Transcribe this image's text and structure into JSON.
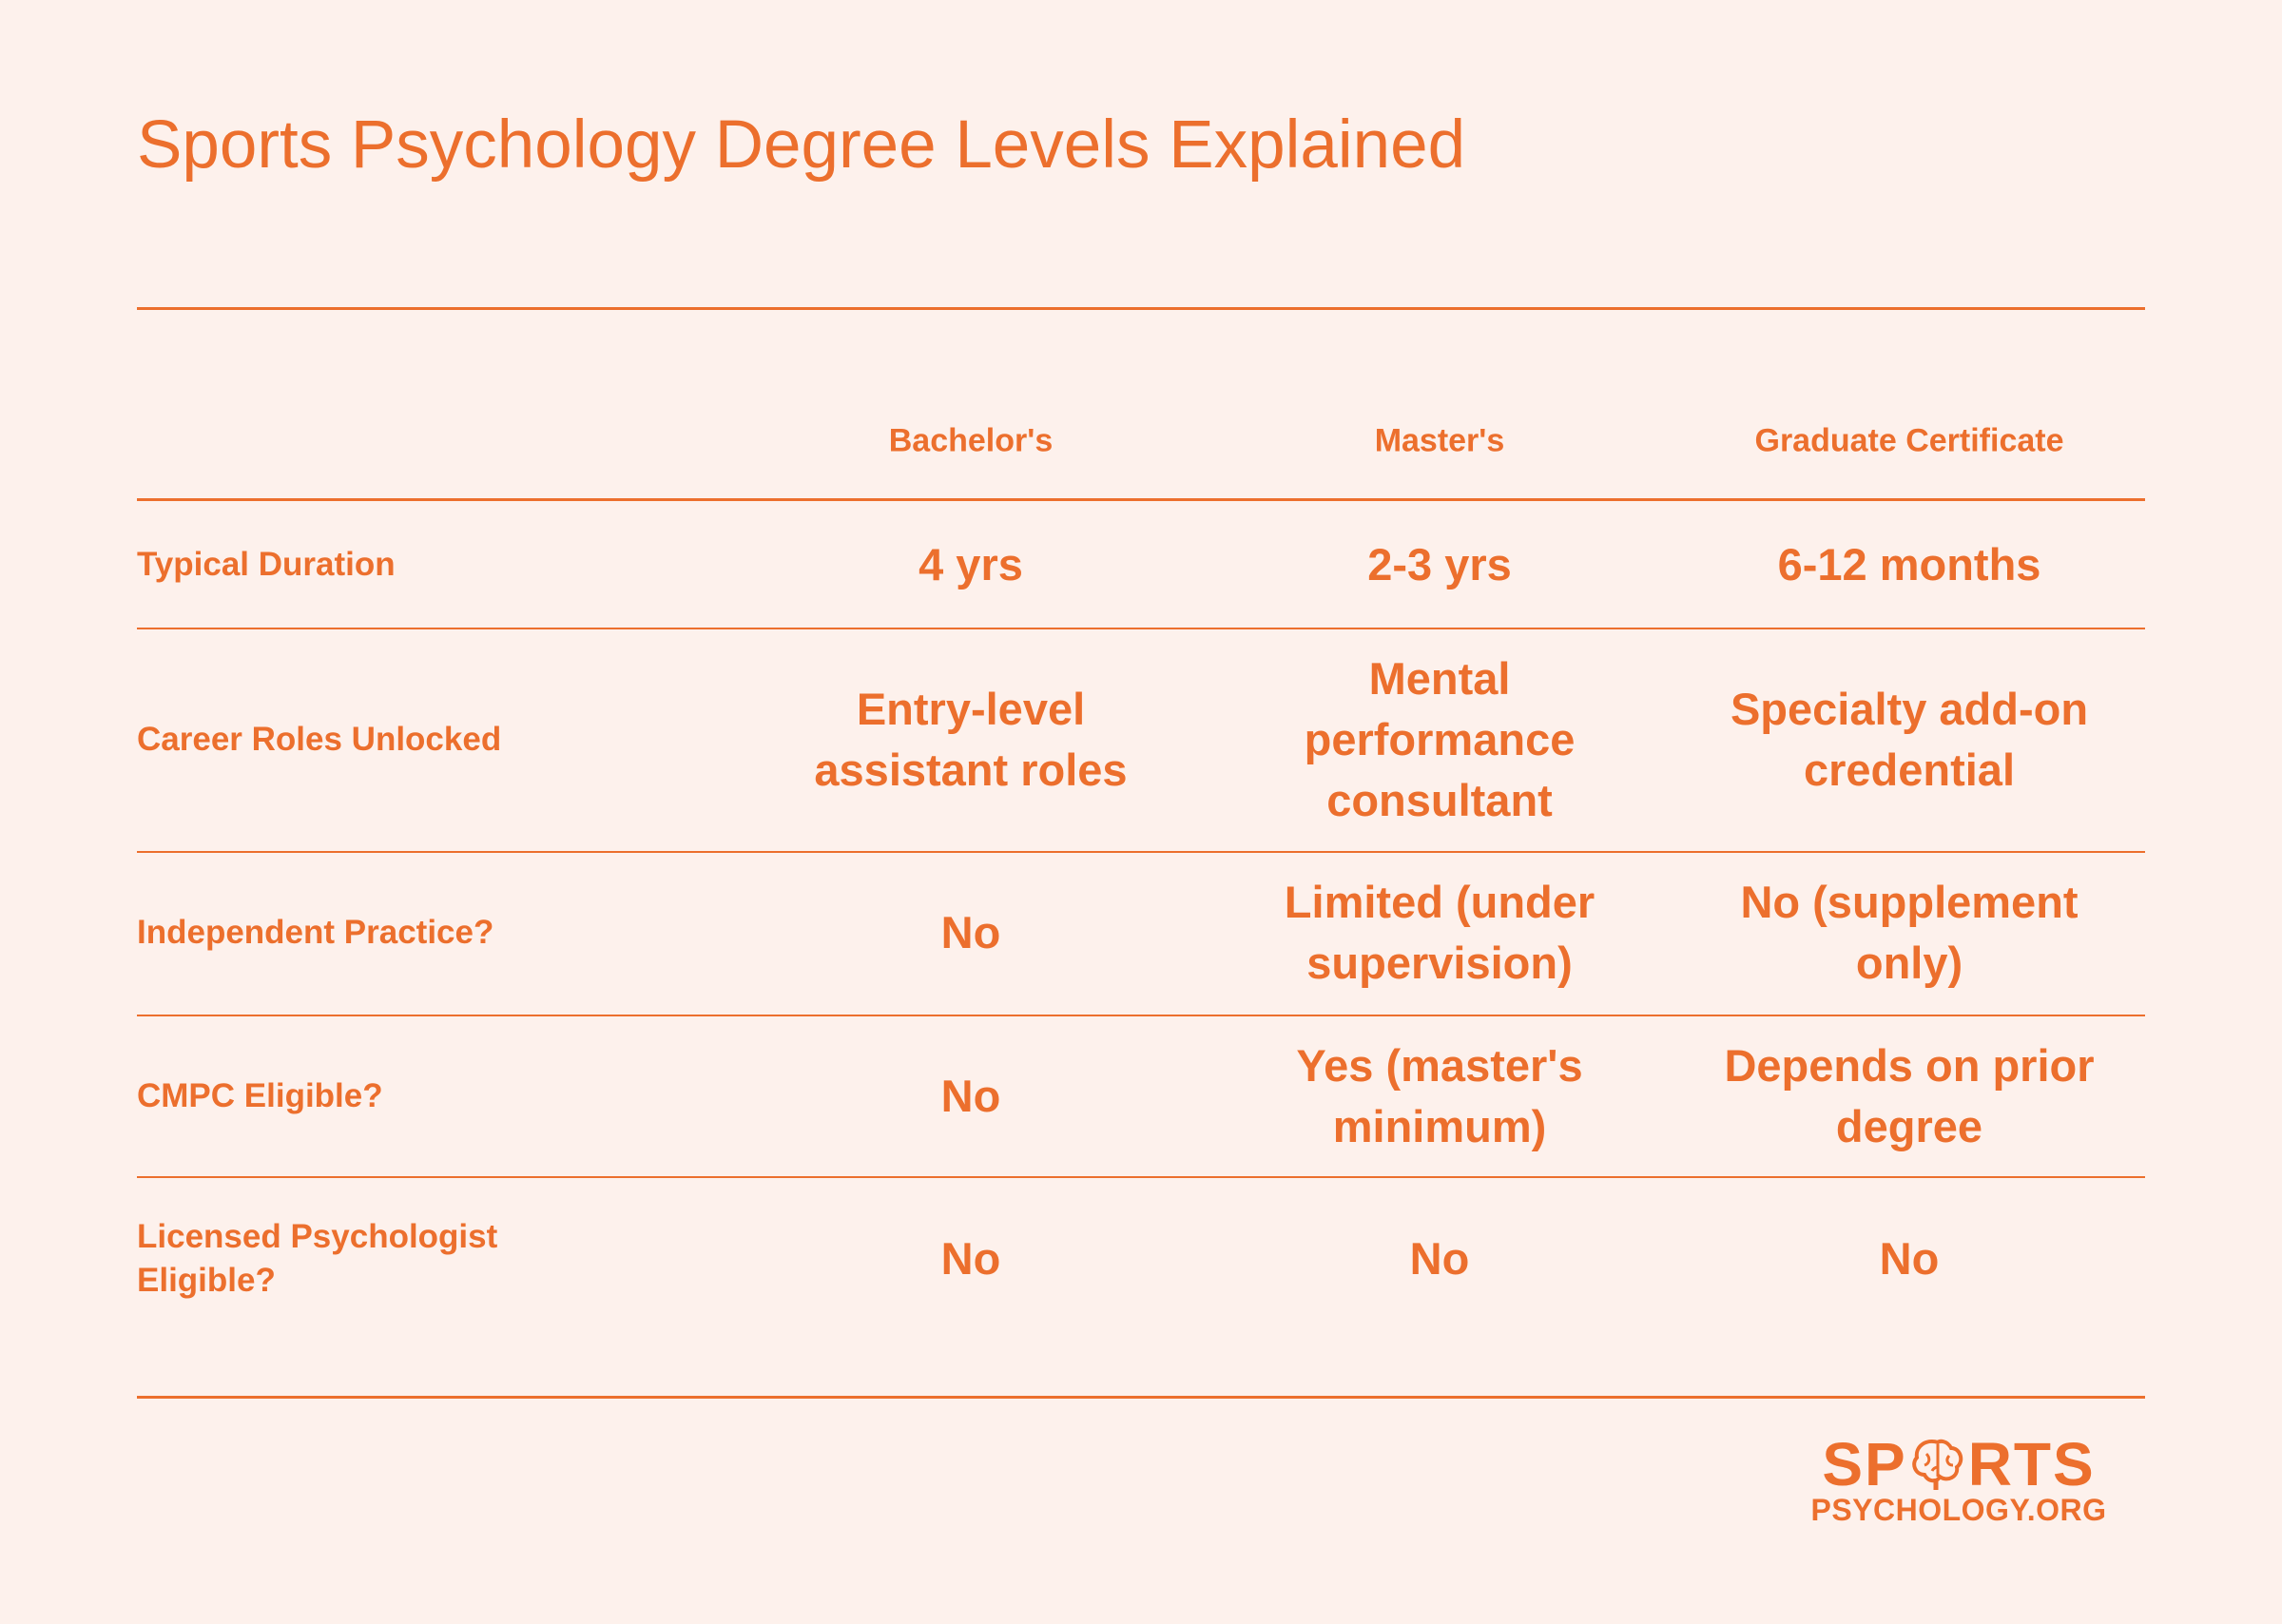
{
  "header": {
    "title": "Sports Psychology Degree Levels Explained"
  },
  "table": {
    "columns": [
      "Bachelor's",
      "Master's",
      "Graduate Certificate"
    ],
    "rows": [
      {
        "label": "Typical Duration",
        "cells": [
          "4 yrs",
          "2-3 yrs",
          "6-12 months"
        ]
      },
      {
        "label": "Career Roles Unlocked",
        "cells": [
          "Entry-level assistant roles",
          "Mental performance consultant",
          "Specialty add-on credential"
        ]
      },
      {
        "label": "Independent Practice?",
        "cells": [
          "No",
          "Limited (under supervision)",
          "No (supplement only)"
        ]
      },
      {
        "label": "CMPC Eligible?",
        "cells": [
          "No",
          "Yes (master's minimum)",
          "Depends on prior degree"
        ]
      },
      {
        "label": "Licensed Psychologist Eligible?",
        "cells": [
          "No",
          "No",
          "No"
        ]
      }
    ]
  },
  "logo": {
    "left": "SP",
    "right": "RTS",
    "subtitle": "PSYCHOLOGY.ORG"
  }
}
